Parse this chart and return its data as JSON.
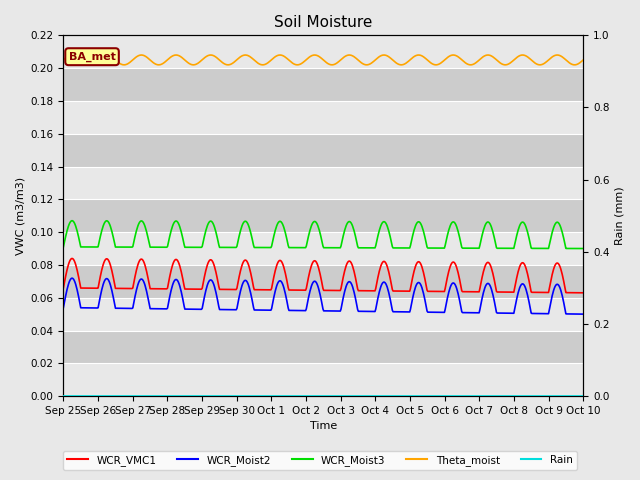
{
  "title": "Soil Moisture",
  "xlabel": "Time",
  "ylabel_left": "VWC (m3/m3)",
  "ylabel_right": "Rain (mm)",
  "ylim_left": [
    0.0,
    0.22
  ],
  "ylim_right": [
    0.0,
    1.0
  ],
  "yticks_left": [
    0.0,
    0.02,
    0.04,
    0.06,
    0.08,
    0.1,
    0.12,
    0.14,
    0.16,
    0.18,
    0.2,
    0.22
  ],
  "yticks_right": [
    0.0,
    0.2,
    0.4,
    0.6,
    0.8,
    1.0
  ],
  "n_points": 720,
  "n_days": 15,
  "series": {
    "WCR_VMC1": {
      "mean": 0.075,
      "amplitude": 0.009,
      "half_period": true,
      "trend": -0.003,
      "color": "#ff0000",
      "linewidth": 1.2
    },
    "WCR_Moist2": {
      "mean": 0.063,
      "amplitude": 0.009,
      "half_period": true,
      "trend": -0.004,
      "color": "#0000ff",
      "linewidth": 1.2
    },
    "WCR_Moist3": {
      "mean": 0.099,
      "amplitude": 0.008,
      "half_period": true,
      "trend": -0.001,
      "color": "#00dd00",
      "linewidth": 1.2
    },
    "Theta_moist": {
      "mean": 0.205,
      "amplitude": 0.003,
      "half_period": false,
      "trend": 0.0,
      "color": "#ffa500",
      "linewidth": 1.2
    },
    "Rain": {
      "mean": 0.0,
      "amplitude": 0.0,
      "half_period": false,
      "trend": 0.0,
      "color": "#00dddd",
      "linewidth": 1.2
    }
  },
  "xtick_labels": [
    "Sep 25",
    "Sep 26",
    "Sep 27",
    "Sep 28",
    "Sep 29",
    "Sep 30",
    "Oct 1",
    "Oct 2",
    "Oct 3",
    "Oct 4",
    "Oct 5",
    "Oct 6",
    "Oct 7",
    "Oct 8",
    "Oct 9",
    "Oct 10"
  ],
  "fig_bg_color": "#e8e8e8",
  "plot_bg_color": "#cccccc",
  "band_color": "#e8e8e8",
  "annotation_text": "BA_met",
  "annotation_bg": "#ffff99",
  "annotation_border": "#8b0000",
  "title_fontsize": 11,
  "label_fontsize": 8,
  "tick_fontsize": 7.5,
  "legend_labels": [
    "WCR_VMC1",
    "WCR_Moist2",
    "WCR_Moist3",
    "Theta_moist",
    "Rain"
  ],
  "legend_colors": [
    "#ff0000",
    "#0000ff",
    "#00dd00",
    "#ffa500",
    "#00dddd"
  ]
}
